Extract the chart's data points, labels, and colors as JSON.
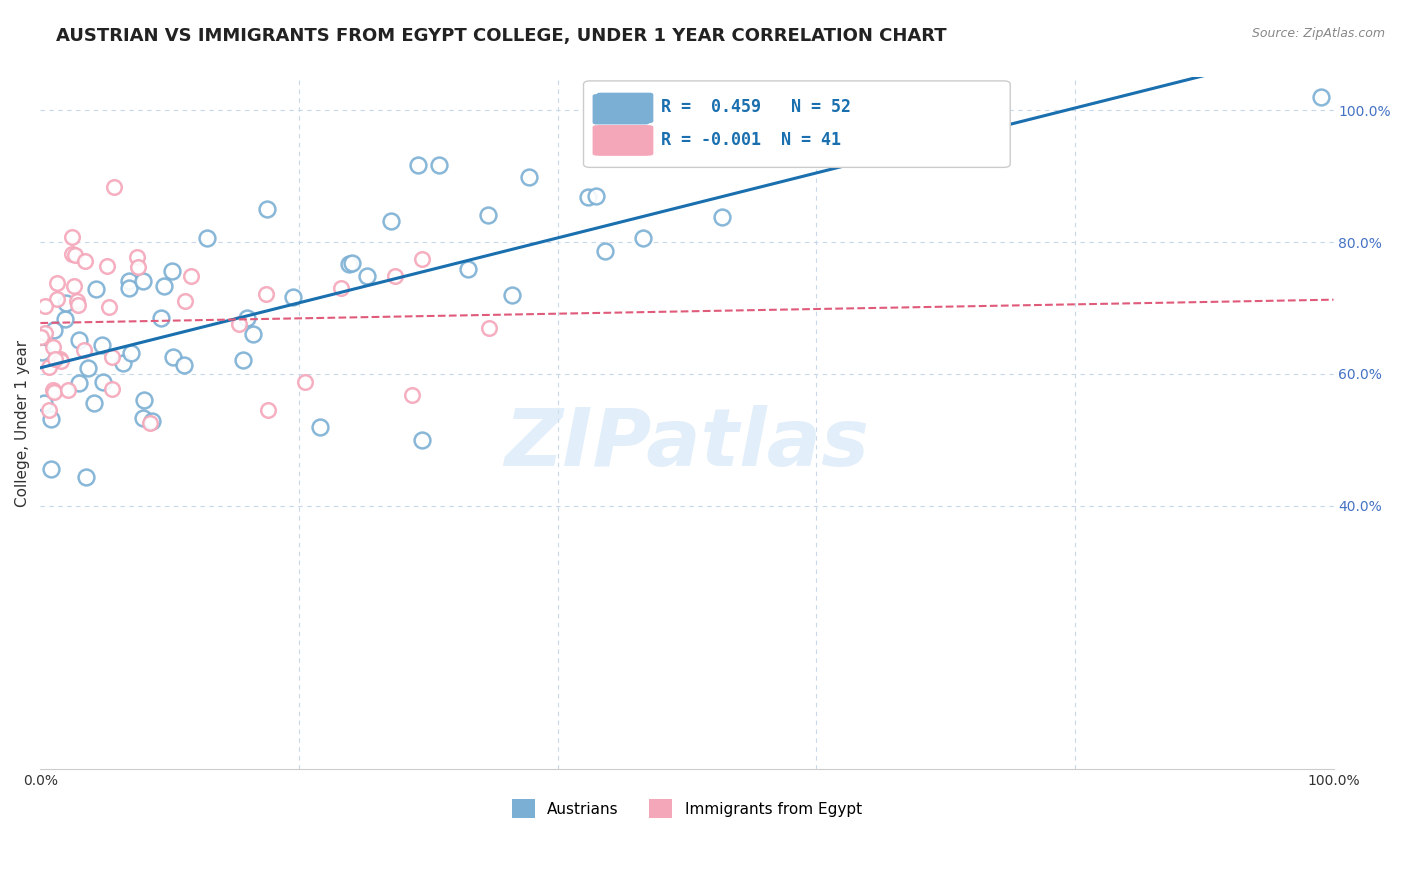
{
  "title": "AUSTRIAN VS IMMIGRANTS FROM EGYPT COLLEGE, UNDER 1 YEAR CORRELATION CHART",
  "source": "Source: ZipAtlas.com",
  "ylabel": "College, Under 1 year",
  "legend_label1": "Austrians",
  "legend_label2": "Immigrants from Egypt",
  "r1": 0.459,
  "n1": 52,
  "r2": -0.001,
  "n2": 41,
  "blue_color": "#7bafd4",
  "pink_color": "#f4a7b9",
  "blue_line_color": "#1a6faf",
  "pink_line_color": "#e05a7a",
  "watermark_color": "#d0e4f5",
  "background_color": "#ffffff",
  "grid_color": "#c8d8e8",
  "xlim": [
    0.0,
    1.0
  ],
  "ylim": [
    0.0,
    1.05
  ]
}
